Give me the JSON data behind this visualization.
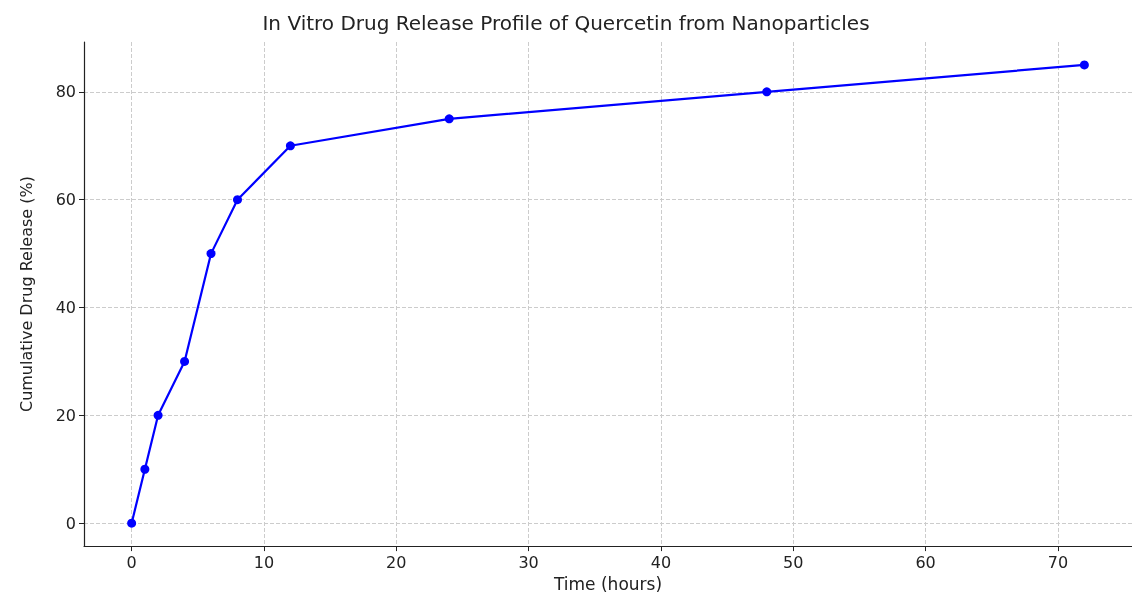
{
  "chart_data": {
    "type": "line",
    "title": "In Vitro Drug Release Profile of Quercetin from Nanoparticles",
    "xlabel": "Time (hours)",
    "ylabel": "Cumulative Drug Release (%)",
    "x": [
      0,
      1,
      2,
      4,
      6,
      8,
      12,
      24,
      48,
      72
    ],
    "series": [
      {
        "color": "#0000ff",
        "values": [
          0,
          10,
          20,
          30,
          50,
          60,
          70,
          75,
          80,
          85
        ]
      }
    ],
    "xlim": [
      -3.6,
      75.6
    ],
    "xticks": [
      0,
      10,
      20,
      30,
      40,
      50,
      60,
      70
    ],
    "ylim": [
      -4.25,
      89.25
    ],
    "yticks": [
      0,
      20,
      40,
      60,
      80
    ],
    "grid": true,
    "marker": "circle",
    "line_style": "solid"
  }
}
